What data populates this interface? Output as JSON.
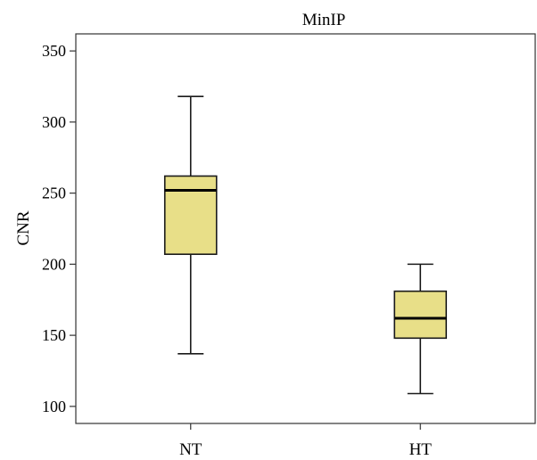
{
  "chart_data": {
    "type": "box",
    "title": "MinIP",
    "xlabel": "",
    "ylabel": "CNR",
    "ylim": [
      88,
      362
    ],
    "yticks": [
      100,
      150,
      200,
      250,
      300,
      350
    ],
    "ytick_labels": [
      "100",
      "150",
      "200",
      "250",
      "300",
      "350"
    ],
    "categories": [
      "NT",
      "HT"
    ],
    "boxes": [
      {
        "category": "NT",
        "whisker_low": 137,
        "q1": 207,
        "median": 252,
        "q3": 262,
        "whisker_high": 318
      },
      {
        "category": "HT",
        "whisker_low": 109,
        "q1": 148,
        "median": 162,
        "q3": 181,
        "whisker_high": 200
      }
    ],
    "box_fill": "#e8df88",
    "line_color": "#1a1a1a",
    "grid": false,
    "legend": "none"
  }
}
